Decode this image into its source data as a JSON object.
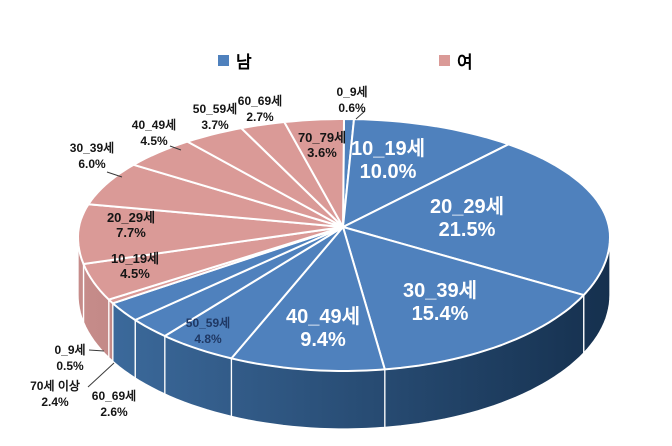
{
  "chart_data": {
    "type": "pie",
    "variant": "3d",
    "title": "",
    "unit": "%",
    "direction": "clockwise",
    "start_angle_deg": 0,
    "legend_position": "top",
    "background": "#ffffff",
    "series": [
      {
        "name": "남",
        "color": "#4F81BD",
        "side_colors": [
          "#3E6DA0",
          "#15304E"
        ],
        "points": [
          {
            "label": "0_9세",
            "value": 0.6
          },
          {
            "label": "10_19세",
            "value": 10.0
          },
          {
            "label": "20_29세",
            "value": 21.5
          },
          {
            "label": "30_39세",
            "value": 15.4
          },
          {
            "label": "40_49세",
            "value": 9.4
          },
          {
            "label": "50_59세",
            "value": 4.8
          },
          {
            "label": "60_69세",
            "value": 2.6
          },
          {
            "label": "70세 이상",
            "value": 2.4
          }
        ]
      },
      {
        "name": "여",
        "color": "#DA9A97",
        "side_colors": [
          "#C68C8A",
          "#9C6361"
        ],
        "points": [
          {
            "label": "0_9세",
            "value": 0.5
          },
          {
            "label": "10_19세",
            "value": 4.5
          },
          {
            "label": "20_29세",
            "value": 7.7
          },
          {
            "label": "30_39세",
            "value": 6.0
          },
          {
            "label": "40_49세",
            "value": 4.5
          },
          {
            "label": "50_59세",
            "value": 3.7
          },
          {
            "label": "60_69세",
            "value": 2.7
          },
          {
            "label": "70_79세",
            "value": 3.6
          }
        ]
      }
    ]
  }
}
